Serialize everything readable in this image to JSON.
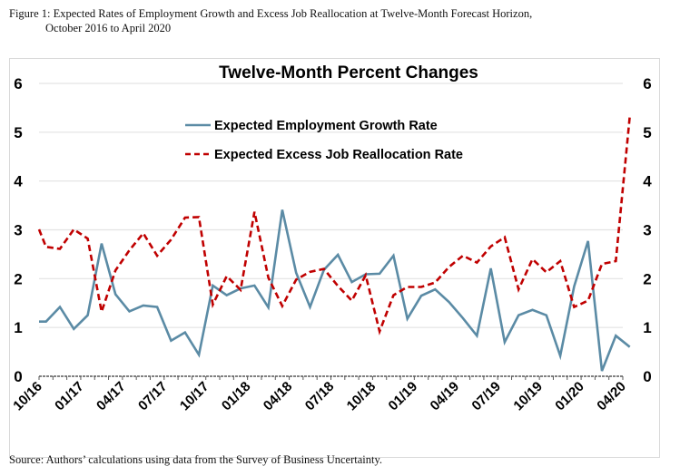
{
  "figure": {
    "caption_line1": "Figure 1: Expected Rates of Employment Growth and Excess Job Reallocation at Twelve-Month Forecast Horizon,",
    "caption_line2": "October 2016 to April 2020",
    "source": "Source: Authors’ calculations using data from the Survey of Business Uncertainty."
  },
  "chart_data": {
    "type": "line",
    "title": "Twelve-Month Percent Changes",
    "xlabel": "",
    "ylabel": "",
    "ylim": [
      0,
      6
    ],
    "yticks": [
      0,
      1,
      2,
      3,
      4,
      5,
      6
    ],
    "y_axis_sides": "both",
    "grid": true,
    "legend_position": "top-center",
    "x_ticklabels": [
      "10/16",
      "01/17",
      "04/17",
      "07/17",
      "10/17",
      "01/18",
      "04/18",
      "07/18",
      "10/18",
      "01/19",
      "04/19",
      "07/19",
      "10/19",
      "01/20",
      "04/20"
    ],
    "x_tick_months": [
      0,
      3,
      6,
      9,
      12,
      15,
      18,
      21,
      24,
      27,
      30,
      33,
      36,
      39,
      42
    ],
    "x_months": [
      0,
      0.5,
      1.5,
      2.5,
      3.5,
      4.5,
      5.5,
      6.5,
      7.5,
      8.5,
      9.5,
      10.5,
      11.5,
      12.5,
      13.5,
      14.5,
      15.5,
      16.5,
      17.5,
      18.5,
      19.5,
      20.5,
      21.5,
      22.5,
      23.5,
      24.5,
      25.5,
      26.5,
      27.5,
      28.5,
      29.5,
      30.5,
      31.5,
      32.5,
      33.5,
      34.5,
      35.5,
      36.5,
      37.5,
      38.5,
      39.5,
      40.5,
      41.5,
      42.5
    ],
    "series": [
      {
        "name": "Expected Employment Growth Rate",
        "color": "#5b8ba5",
        "style": "solid",
        "values": [
          1.12,
          1.12,
          1.42,
          0.97,
          1.25,
          2.72,
          1.68,
          1.33,
          1.45,
          1.42,
          0.73,
          0.9,
          0.44,
          1.86,
          1.66,
          1.8,
          1.86,
          1.41,
          3.41,
          2.12,
          1.42,
          2.18,
          2.49,
          1.93,
          2.09,
          2.1,
          2.47,
          1.18,
          1.65,
          1.78,
          1.52,
          1.19,
          0.83,
          2.21,
          0.7,
          1.25,
          1.36,
          1.25,
          0.42,
          1.84,
          2.77,
          0.11,
          0.83,
          0.6
        ]
      },
      {
        "name": "Expected Excess Job Reallocation Rate",
        "color": "#c00000",
        "style": "dashed",
        "values": [
          3.01,
          2.65,
          2.61,
          3.01,
          2.82,
          1.32,
          2.17,
          2.58,
          2.93,
          2.47,
          2.8,
          3.25,
          3.26,
          1.47,
          2.05,
          1.77,
          3.37,
          2.02,
          1.44,
          1.98,
          2.14,
          2.2,
          1.85,
          1.55,
          2.07,
          0.92,
          1.66,
          1.83,
          1.83,
          1.92,
          2.24,
          2.47,
          2.33,
          2.66,
          2.85,
          1.78,
          2.4,
          2.13,
          2.36,
          1.42,
          1.55,
          2.3,
          2.36,
          5.33
        ]
      }
    ]
  }
}
